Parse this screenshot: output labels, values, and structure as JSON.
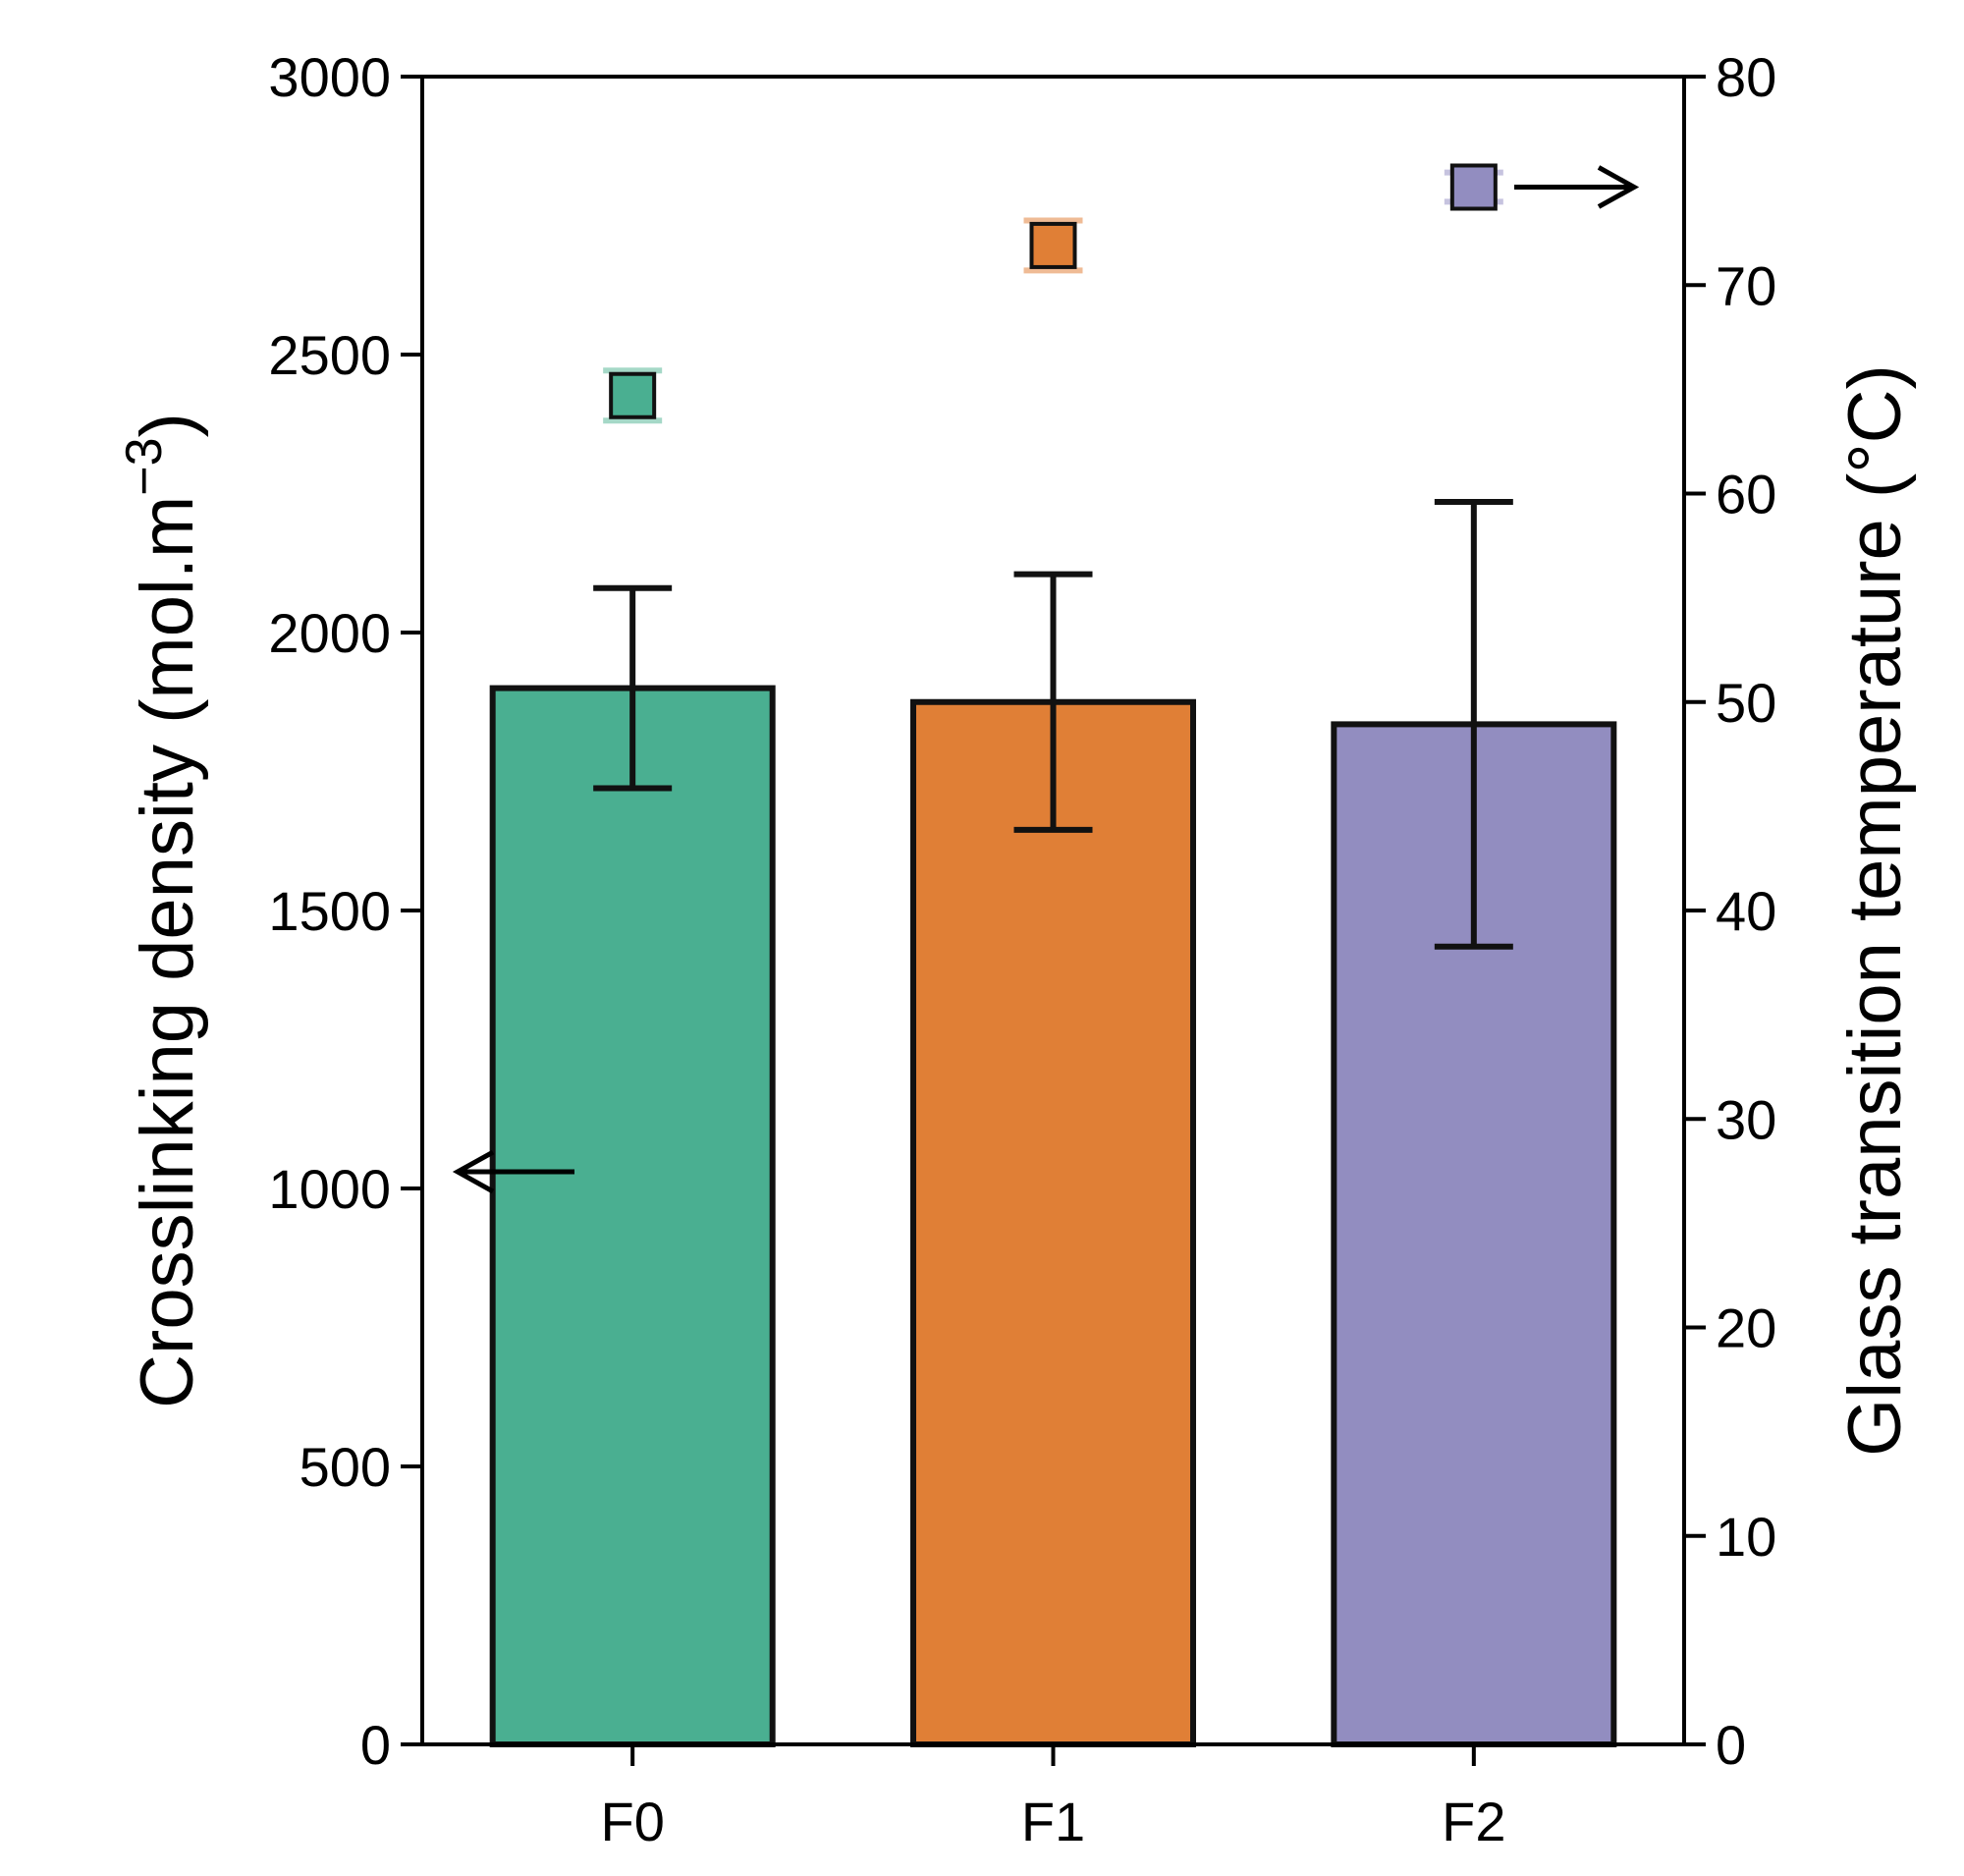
{
  "chart_data": {
    "type": "bar",
    "categories": [
      "F0",
      "F1",
      "F2"
    ],
    "series": [
      {
        "name": "Crosslinking density",
        "axis": "left",
        "kind": "bar",
        "values": [
          1900,
          1875,
          1835
        ],
        "errors": [
          180,
          230,
          400
        ],
        "colors": [
          "#4AAF91",
          "#E07F36",
          "#928DC0"
        ]
      },
      {
        "name": "Glass transition temperature",
        "axis": "right",
        "kind": "scatter",
        "values": [
          64.7,
          71.9,
          74.7
        ],
        "errors": [
          1.2,
          1.2,
          0.7
        ],
        "colors": [
          "#4AAF91",
          "#E07F36",
          "#928DC0"
        ],
        "error_colors": [
          "#A5D8C7",
          "#EFBB95",
          "#C6C3DF"
        ]
      }
    ],
    "y_left": {
      "label_main": "Crosslinking density (mol.m",
      "label_sup": "−3",
      "label_close": ")",
      "ylim": [
        0,
        3000
      ],
      "ticks": [
        "0",
        "500",
        "1000",
        "1500",
        "2000",
        "2500",
        "3000"
      ]
    },
    "y_right": {
      "label": "Glass transition temperature (°C)",
      "ylim": [
        0,
        80
      ],
      "ticks": [
        "0",
        "10",
        "20",
        "30",
        "40",
        "50",
        "60",
        "70",
        "80"
      ]
    },
    "x_ticks": [
      "F0",
      "F1",
      "F2"
    ],
    "annotations": [
      {
        "type": "arrow",
        "direction": "left",
        "axis": "left",
        "y": 1030
      },
      {
        "type": "arrow",
        "direction": "right",
        "axis": "right",
        "y": 74.7
      }
    ]
  }
}
